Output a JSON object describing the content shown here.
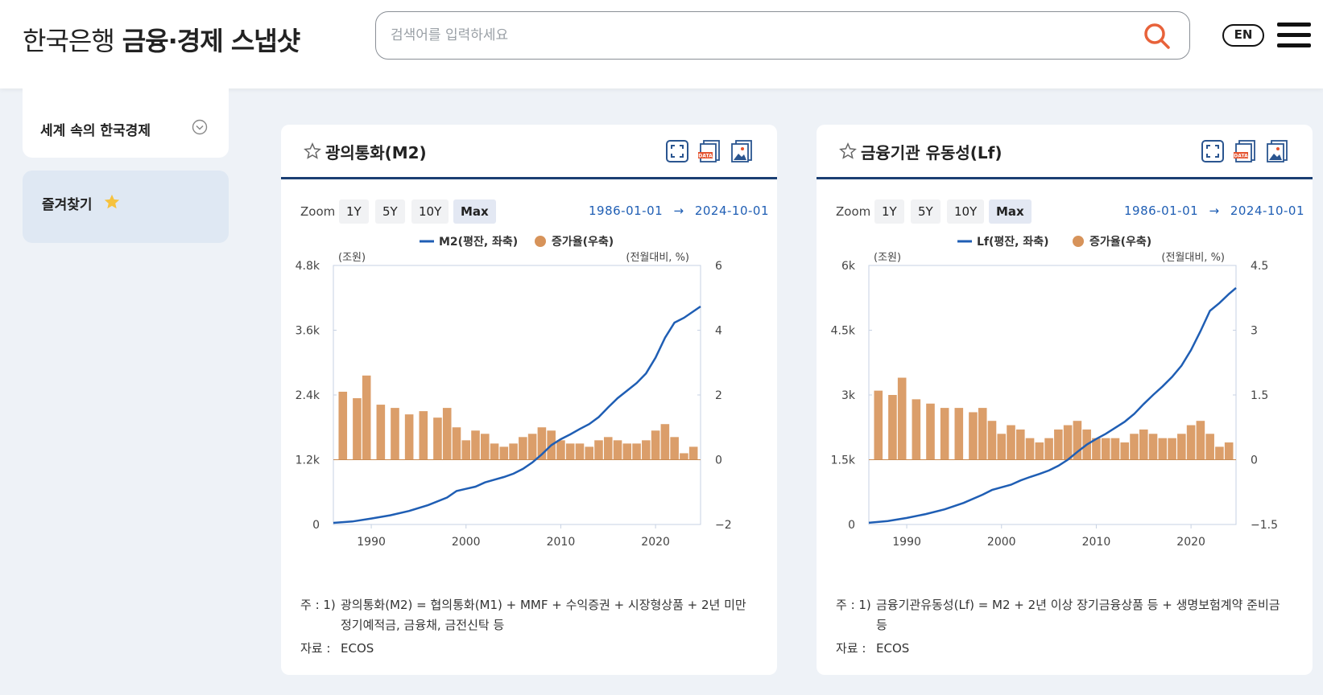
{
  "header": {
    "bank_name": "한국은행",
    "service_name": "금융·경제 스냅샷",
    "search_placeholder": "검색어를 입력하세요",
    "lang_label": "EN"
  },
  "sidebar": {
    "section_label": "세계 속의 한국경제",
    "favorites_label": "즐겨찾기"
  },
  "cards": [
    {
      "title": "광의통화(M2)",
      "zoom_label": "Zoom",
      "zoom_options": [
        "1Y",
        "5Y",
        "10Y",
        "Max"
      ],
      "range_from": "1986-01-01",
      "range_arrow": "→",
      "range_to": "2024-10-01",
      "notes_key": "주 : 1)",
      "notes_text": "광의통화(M2) = 협의통화(M1) + MMF + 수익증권 + 시장형상품 + 2년 미만 정기예적금, 금융채, 금전신탁 등",
      "source_key": "자료 :",
      "source_text": "ECOS"
    },
    {
      "title": "금융기관 유동성(Lf)",
      "zoom_label": "Zoom",
      "zoom_options": [
        "1Y",
        "5Y",
        "10Y",
        "Max"
      ],
      "range_from": "1986-01-01",
      "range_arrow": "→",
      "range_to": "2024-10-01",
      "notes_key": "주 : 1)",
      "notes_text": "금융기관유동성(Lf) = M2 + 2년 이상 장기금융상품 등 + 생명보험계약 준비금 등",
      "source_key": "자료 :",
      "source_text": "ECOS"
    }
  ],
  "colors": {
    "line": "#1f5eb4",
    "bar": "#d7935a",
    "accent": "#1b3f73"
  },
  "chart_data": [
    {
      "type": "line+bar",
      "legend": [
        "M2(평잔, 좌축)",
        "증가율(우축)"
      ],
      "legend_placement": "top-center",
      "left_axis_unit": "(조원)",
      "right_axis_unit": "(전월대비, %)",
      "left_ticks": [
        "0",
        "1.2k",
        "2.4k",
        "3.6k",
        "4.8k"
      ],
      "right_ticks": [
        "−2",
        "0",
        "2",
        "4",
        "6"
      ],
      "x_ticks": [
        "1990",
        "2000",
        "2010",
        "2020"
      ],
      "x_range": [
        1986.0,
        2024.75
      ],
      "ylim_left": [
        0,
        4800
      ],
      "ylim_right": [
        -2,
        6
      ],
      "series": [
        {
          "name": "M2(평잔, 좌축)",
          "kind": "line",
          "points": [
            [
              1986.0,
              30
            ],
            [
              1988.0,
              55
            ],
            [
              1990.0,
              110
            ],
            [
              1992.0,
              170
            ],
            [
              1994.0,
              250
            ],
            [
              1996.0,
              360
            ],
            [
              1998.0,
              500
            ],
            [
              1999.0,
              620
            ],
            [
              2000.0,
              660
            ],
            [
              2001.0,
              700
            ],
            [
              2002.0,
              780
            ],
            [
              2003.0,
              830
            ],
            [
              2004.0,
              880
            ],
            [
              2005.0,
              940
            ],
            [
              2006.0,
              1030
            ],
            [
              2007.0,
              1150
            ],
            [
              2008.0,
              1300
            ],
            [
              2009.0,
              1470
            ],
            [
              2010.0,
              1580
            ],
            [
              2011.0,
              1670
            ],
            [
              2012.0,
              1770
            ],
            [
              2013.0,
              1860
            ],
            [
              2014.0,
              1990
            ],
            [
              2015.0,
              2170
            ],
            [
              2016.0,
              2340
            ],
            [
              2017.0,
              2480
            ],
            [
              2018.0,
              2620
            ],
            [
              2019.0,
              2800
            ],
            [
              2020.0,
              3090
            ],
            [
              2021.0,
              3460
            ],
            [
              2022.0,
              3740
            ],
            [
              2023.0,
              3830
            ],
            [
              2024.0,
              3950
            ],
            [
              2024.75,
              4040
            ]
          ]
        },
        {
          "name": "증가율(우축)",
          "kind": "bar",
          "points": [
            [
              1987.0,
              2.1
            ],
            [
              1988.5,
              1.9
            ],
            [
              1989.5,
              2.6
            ],
            [
              1991.0,
              1.7
            ],
            [
              1992.5,
              1.6
            ],
            [
              1994.0,
              1.4
            ],
            [
              1995.5,
              1.5
            ],
            [
              1997.0,
              1.3
            ],
            [
              1998.0,
              1.6
            ],
            [
              1999.0,
              1.0
            ],
            [
              2000.0,
              0.6
            ],
            [
              2001.0,
              0.9
            ],
            [
              2002.0,
              0.8
            ],
            [
              2003.0,
              0.5
            ],
            [
              2004.0,
              0.4
            ],
            [
              2005.0,
              0.5
            ],
            [
              2006.0,
              0.7
            ],
            [
              2007.0,
              0.8
            ],
            [
              2008.0,
              1.0
            ],
            [
              2009.0,
              0.9
            ],
            [
              2010.0,
              0.6
            ],
            [
              2011.0,
              0.5
            ],
            [
              2012.0,
              0.5
            ],
            [
              2013.0,
              0.4
            ],
            [
              2014.0,
              0.6
            ],
            [
              2015.0,
              0.7
            ],
            [
              2016.0,
              0.6
            ],
            [
              2017.0,
              0.5
            ],
            [
              2018.0,
              0.5
            ],
            [
              2019.0,
              0.6
            ],
            [
              2020.0,
              0.9
            ],
            [
              2021.0,
              1.1
            ],
            [
              2022.0,
              0.7
            ],
            [
              2023.0,
              0.2
            ],
            [
              2024.0,
              0.4
            ]
          ]
        }
      ]
    },
    {
      "type": "line+bar",
      "legend": [
        "Lf(평잔, 좌축)",
        "증가율(우축)"
      ],
      "legend_placement": "top-center",
      "left_axis_unit": "(조원)",
      "right_axis_unit": "(전월대비, %)",
      "left_ticks": [
        "0",
        "1.5k",
        "3k",
        "4.5k",
        "6k"
      ],
      "right_ticks": [
        "−1.5",
        "0",
        "1.5",
        "3",
        "4.5"
      ],
      "x_ticks": [
        "1990",
        "2000",
        "2010",
        "2020"
      ],
      "x_range": [
        1986.0,
        2024.75
      ],
      "ylim_left": [
        0,
        6000
      ],
      "ylim_right": [
        -1.5,
        4.5
      ],
      "series": [
        {
          "name": "Lf(평잔, 좌축)",
          "kind": "line",
          "points": [
            [
              1986.0,
              40
            ],
            [
              1988.0,
              80
            ],
            [
              1990.0,
              150
            ],
            [
              1992.0,
              240
            ],
            [
              1994.0,
              350
            ],
            [
              1996.0,
              500
            ],
            [
              1998.0,
              690
            ],
            [
              1999.0,
              800
            ],
            [
              2000.0,
              860
            ],
            [
              2001.0,
              920
            ],
            [
              2002.0,
              1020
            ],
            [
              2003.0,
              1100
            ],
            [
              2004.0,
              1170
            ],
            [
              2005.0,
              1250
            ],
            [
              2006.0,
              1360
            ],
            [
              2007.0,
              1500
            ],
            [
              2008.0,
              1680
            ],
            [
              2009.0,
              1850
            ],
            [
              2010.0,
              1980
            ],
            [
              2011.0,
              2100
            ],
            [
              2012.0,
              2240
            ],
            [
              2013.0,
              2380
            ],
            [
              2014.0,
              2560
            ],
            [
              2015.0,
              2790
            ],
            [
              2016.0,
              3000
            ],
            [
              2017.0,
              3200
            ],
            [
              2018.0,
              3420
            ],
            [
              2019.0,
              3680
            ],
            [
              2020.0,
              4040
            ],
            [
              2021.0,
              4480
            ],
            [
              2022.0,
              4950
            ],
            [
              2023.0,
              5130
            ],
            [
              2024.0,
              5340
            ],
            [
              2024.75,
              5480
            ]
          ]
        },
        {
          "name": "증가율(우축)",
          "kind": "bar",
          "points": [
            [
              1987.0,
              1.6
            ],
            [
              1988.5,
              1.5
            ],
            [
              1989.5,
              1.9
            ],
            [
              1991.0,
              1.4
            ],
            [
              1992.5,
              1.3
            ],
            [
              1994.0,
              1.2
            ],
            [
              1995.5,
              1.2
            ],
            [
              1997.0,
              1.1
            ],
            [
              1998.0,
              1.2
            ],
            [
              1999.0,
              0.9
            ],
            [
              2000.0,
              0.6
            ],
            [
              2001.0,
              0.8
            ],
            [
              2002.0,
              0.7
            ],
            [
              2003.0,
              0.5
            ],
            [
              2004.0,
              0.4
            ],
            [
              2005.0,
              0.5
            ],
            [
              2006.0,
              0.7
            ],
            [
              2007.0,
              0.8
            ],
            [
              2008.0,
              0.9
            ],
            [
              2009.0,
              0.7
            ],
            [
              2010.0,
              0.5
            ],
            [
              2011.0,
              0.5
            ],
            [
              2012.0,
              0.5
            ],
            [
              2013.0,
              0.4
            ],
            [
              2014.0,
              0.6
            ],
            [
              2015.0,
              0.7
            ],
            [
              2016.0,
              0.6
            ],
            [
              2017.0,
              0.5
            ],
            [
              2018.0,
              0.5
            ],
            [
              2019.0,
              0.6
            ],
            [
              2020.0,
              0.8
            ],
            [
              2021.0,
              0.9
            ],
            [
              2022.0,
              0.6
            ],
            [
              2023.0,
              0.3
            ],
            [
              2024.0,
              0.4
            ]
          ]
        }
      ]
    }
  ]
}
